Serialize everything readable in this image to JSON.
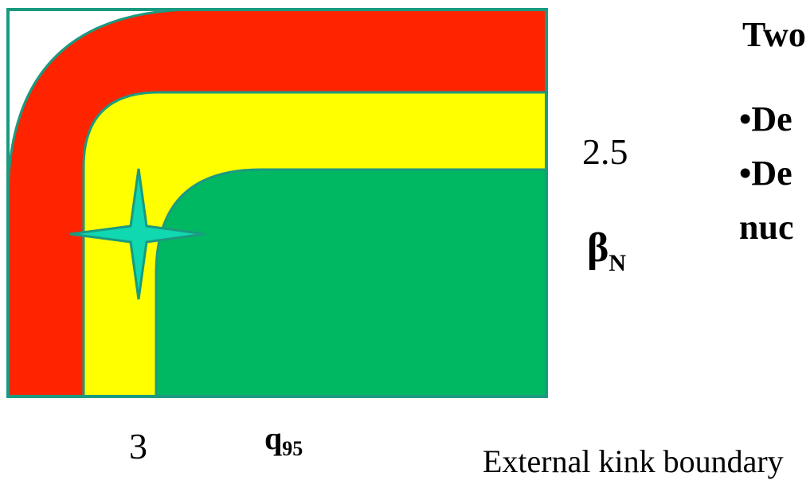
{
  "axes": {
    "y_value": "2.5",
    "y_label": "β",
    "y_label_sub": "N",
    "x_value": "3",
    "x_label": "q",
    "x_label_sub": "95"
  },
  "side_text": {
    "line1": "Two",
    "line2": "•De",
    "line3": "•De",
    "line4": "nuc"
  },
  "caption": "External kink boundary",
  "regions": {
    "outer_color": "#ff2400",
    "middle_color": "#ffff00",
    "inner_color": "#00b862",
    "border_color": "#1a9a80",
    "marker_color": "#10d8b0"
  }
}
